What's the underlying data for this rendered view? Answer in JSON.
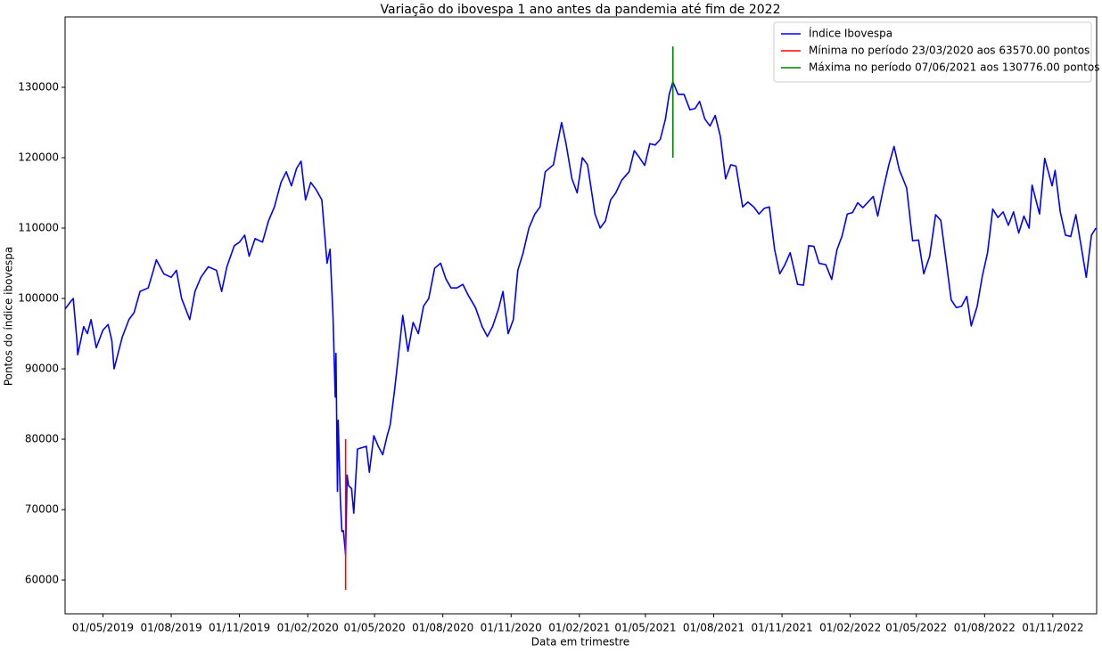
{
  "chart_data": {
    "type": "line",
    "title": "Variação do ibovespa 1 ano antes da pandemia até fim de 2022",
    "x_label": "Data em trimestre",
    "y_label": "Pontos do índice ibovespa",
    "xlim": [
      "2019-03-11",
      "2022-12-30"
    ],
    "ylim": [
      55200,
      140000
    ],
    "yticks": [
      60000,
      70000,
      80000,
      90000,
      100000,
      110000,
      120000,
      130000
    ],
    "xticks": [
      {
        "value": "2019-05-01",
        "label": "01/05/2019"
      },
      {
        "value": "2019-08-01",
        "label": "01/08/2019"
      },
      {
        "value": "2019-11-01",
        "label": "01/11/2019"
      },
      {
        "value": "2020-02-01",
        "label": "01/02/2020"
      },
      {
        "value": "2020-05-01",
        "label": "01/05/2020"
      },
      {
        "value": "2020-08-01",
        "label": "01/08/2020"
      },
      {
        "value": "2020-11-01",
        "label": "01/11/2020"
      },
      {
        "value": "2021-02-01",
        "label": "01/02/2021"
      },
      {
        "value": "2021-05-01",
        "label": "01/05/2021"
      },
      {
        "value": "2021-08-01",
        "label": "01/08/2021"
      },
      {
        "value": "2021-11-01",
        "label": "01/11/2021"
      },
      {
        "value": "2022-02-01",
        "label": "01/02/2022"
      },
      {
        "value": "2022-05-01",
        "label": "01/05/2022"
      },
      {
        "value": "2022-08-01",
        "label": "01/08/2022"
      },
      {
        "value": "2022-11-01",
        "label": "01/11/2022"
      }
    ],
    "grid": false,
    "legend": "upper right",
    "series": [
      {
        "name": "Índice Ibovespa",
        "color": "#0000ff",
        "x": [
          "2019-03-11",
          "2019-03-18",
          "2019-03-22",
          "2019-03-27",
          "2019-03-28",
          "2019-04-05",
          "2019-04-10",
          "2019-04-15",
          "2019-04-22",
          "2019-05-01",
          "2019-05-08",
          "2019-05-13",
          "2019-05-16",
          "2019-05-27",
          "2019-06-05",
          "2019-06-12",
          "2019-06-20",
          "2019-07-01",
          "2019-07-08",
          "2019-07-12",
          "2019-07-22",
          "2019-08-01",
          "2019-08-08",
          "2019-08-15",
          "2019-08-26",
          "2019-09-02",
          "2019-09-10",
          "2019-09-20",
          "2019-10-01",
          "2019-10-08",
          "2019-10-15",
          "2019-10-25",
          "2019-11-01",
          "2019-11-08",
          "2019-11-14",
          "2019-11-22",
          "2019-12-02",
          "2019-12-10",
          "2019-12-18",
          "2019-12-27",
          "2020-01-03",
          "2020-01-10",
          "2020-01-17",
          "2020-01-23",
          "2020-01-29",
          "2020-02-05",
          "2020-02-12",
          "2020-02-20",
          "2020-02-27",
          "2020-03-02",
          "2020-03-06",
          "2020-03-09",
          "2020-03-10",
          "2020-03-12",
          "2020-03-13",
          "2020-03-16",
          "2020-03-18",
          "2020-03-20",
          "2020-03-23",
          "2020-03-25",
          "2020-03-27",
          "2020-03-31",
          "2020-04-03",
          "2020-04-08",
          "2020-04-14",
          "2020-04-20",
          "2020-04-24",
          "2020-04-30",
          "2020-05-06",
          "2020-05-12",
          "2020-05-18",
          "2020-05-22",
          "2020-05-28",
          "2020-06-05",
          "2020-06-08",
          "2020-06-15",
          "2020-06-22",
          "2020-06-29",
          "2020-07-06",
          "2020-07-13",
          "2020-07-21",
          "2020-07-29",
          "2020-08-05",
          "2020-08-12",
          "2020-08-20",
          "2020-08-28",
          "2020-09-04",
          "2020-09-14",
          "2020-09-23",
          "2020-09-30",
          "2020-10-07",
          "2020-10-15",
          "2020-10-21",
          "2020-10-28",
          "2020-11-04",
          "2020-11-10",
          "2020-11-17",
          "2020-11-25",
          "2020-12-03",
          "2020-12-10",
          "2020-12-17",
          "2020-12-28",
          "2021-01-08",
          "2021-01-14",
          "2021-01-22",
          "2021-01-29",
          "2021-02-05",
          "2021-02-12",
          "2021-02-22",
          "2021-03-01",
          "2021-03-08",
          "2021-03-15",
          "2021-03-22",
          "2021-03-30",
          "2021-04-09",
          "2021-04-16",
          "2021-04-23",
          "2021-04-30",
          "2021-05-07",
          "2021-05-14",
          "2021-05-21",
          "2021-05-28",
          "2021-06-02",
          "2021-06-07",
          "2021-06-14",
          "2021-06-22",
          "2021-06-30",
          "2021-07-07",
          "2021-07-13",
          "2021-07-20",
          "2021-07-27",
          "2021-08-03",
          "2021-08-10",
          "2021-08-17",
          "2021-08-24",
          "2021-08-31",
          "2021-09-09",
          "2021-09-16",
          "2021-09-24",
          "2021-10-01",
          "2021-10-08",
          "2021-10-15",
          "2021-10-22",
          "2021-10-29",
          "2021-11-05",
          "2021-11-12",
          "2021-11-22",
          "2021-11-30",
          "2021-12-07",
          "2021-12-14",
          "2021-12-21",
          "2021-12-30",
          "2022-01-07",
          "2022-01-14",
          "2022-01-21",
          "2022-01-28",
          "2022-02-04",
          "2022-02-11",
          "2022-02-18",
          "2022-03-04",
          "2022-03-10",
          "2022-03-17",
          "2022-03-25",
          "2022-04-01",
          "2022-04-08",
          "2022-04-18",
          "2022-04-26",
          "2022-05-04",
          "2022-05-11",
          "2022-05-19",
          "2022-05-27",
          "2022-06-03",
          "2022-06-10",
          "2022-06-17",
          "2022-06-24",
          "2022-07-01",
          "2022-07-08",
          "2022-07-14",
          "2022-07-22",
          "2022-07-29",
          "2022-08-05",
          "2022-08-12",
          "2022-08-19",
          "2022-08-26",
          "2022-09-02",
          "2022-09-09",
          "2022-09-16",
          "2022-09-23",
          "2022-09-30",
          "2022-10-04",
          "2022-10-14",
          "2022-10-21",
          "2022-10-31",
          "2022-11-04",
          "2022-11-11",
          "2022-11-18",
          "2022-11-25",
          "2022-12-02",
          "2022-12-09",
          "2022-12-16",
          "2022-12-23",
          "2022-12-29"
        ],
        "values": [
          98500,
          99500,
          100000,
          94000,
          92000,
          96000,
          95000,
          97000,
          93000,
          95500,
          96300,
          94000,
          90000,
          94500,
          97000,
          98000,
          101000,
          101500,
          104000,
          105500,
          103500,
          103000,
          104000,
          100000,
          97000,
          101000,
          103000,
          104500,
          104000,
          101000,
          104500,
          107500,
          108000,
          109000,
          106000,
          108500,
          108000,
          111000,
          113000,
          116500,
          118000,
          116000,
          118500,
          119500,
          114000,
          116500,
          115500,
          114000,
          105000,
          107000,
          97500,
          86000,
          92200,
          72600,
          82700,
          71200,
          66900,
          67000,
          63570,
          74900,
          73400,
          73000,
          69500,
          78600,
          78800,
          79000,
          75300,
          80500,
          79000,
          77800,
          80500,
          82000,
          87000,
          94600,
          97600,
          92500,
          96600,
          95000,
          98900,
          100000,
          104300,
          105000,
          102800,
          101500,
          101500,
          102000,
          100500,
          98700,
          96000,
          94600,
          96000,
          98500,
          101000,
          95000,
          97000,
          104000,
          106400,
          110000,
          112000,
          113000,
          118000,
          119000,
          125000,
          122000,
          117000,
          115000,
          120000,
          119000,
          112000,
          110000,
          111000,
          114000,
          115000,
          116800,
          118000,
          121000,
          120000,
          118900,
          122000,
          121800,
          122600,
          125500,
          129000,
          130776,
          129000,
          129000,
          126800,
          127000,
          128000,
          125500,
          124500,
          126000,
          123000,
          117000,
          119000,
          118800,
          113000,
          113700,
          113000,
          112000,
          112800,
          113000,
          107000,
          103500,
          104800,
          106500,
          102000,
          101900,
          107500,
          107400,
          105000,
          104800,
          102700,
          106900,
          108900,
          112000,
          112200,
          113600,
          112900,
          114500,
          111700,
          115300,
          119000,
          121600,
          118300,
          115700,
          108200,
          108300,
          103500,
          106000,
          111900,
          111100,
          105500,
          99800,
          98700,
          98900,
          100300,
          96100,
          98900,
          103200,
          106500,
          112700,
          111500,
          112300,
          110400,
          112300,
          109300,
          111700,
          110000,
          116100,
          112000,
          119900,
          116000,
          118200,
          112300,
          109000,
          108800,
          111900,
          107500,
          103000,
          109000,
          110000
        ]
      },
      {
        "name": "Mínima no período 23/03/2020 aos 63570.00 pontos",
        "color": "#ff0000",
        "x": [
          "2020-03-23",
          "2020-03-23"
        ],
        "values": [
          58600,
          80000
        ]
      },
      {
        "name": "Máxima no período 07/06/2021 aos 130776.00 pontos",
        "color": "#008000",
        "x": [
          "2021-06-07",
          "2021-06-07"
        ],
        "values": [
          120000,
          135800
        ]
      }
    ]
  }
}
